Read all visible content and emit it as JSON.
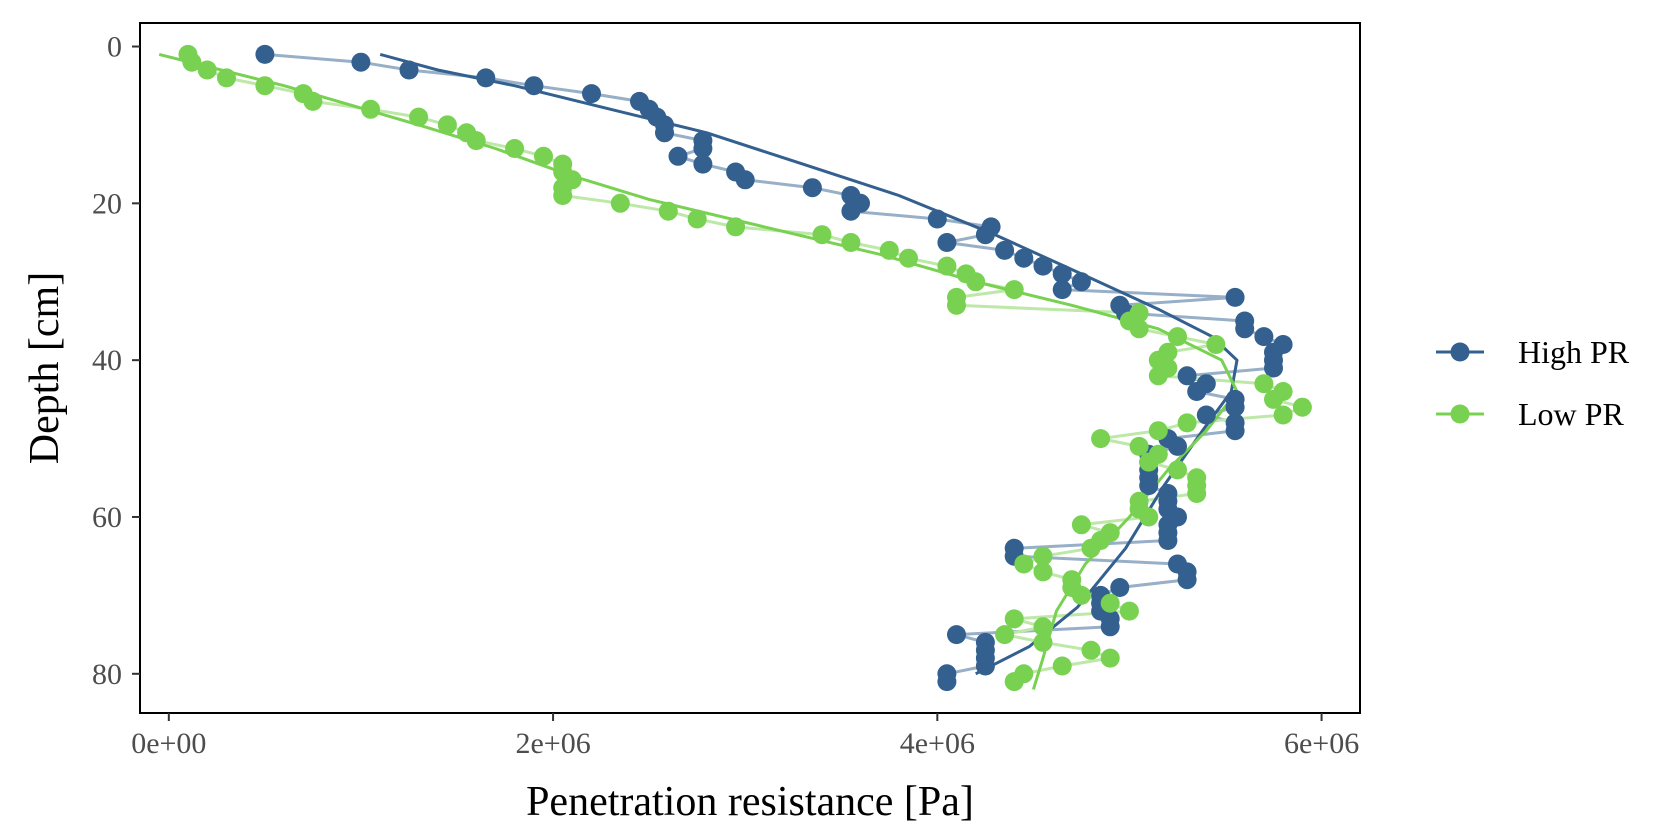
{
  "chart_data": {
    "type": "line",
    "title": "",
    "xlabel": "Penetration resistance [Pa]",
    "ylabel": "Depth [cm]",
    "xlim": [
      -150000,
      6200000
    ],
    "ylim": [
      85,
      -3
    ],
    "y_reversed": true,
    "x_ticks": [
      0,
      2000000,
      4000000,
      6000000
    ],
    "x_tick_labels": [
      "0e+00",
      "2e+06",
      "4e+06",
      "6e+06"
    ],
    "y_ticks": [
      0,
      20,
      40,
      60,
      80
    ],
    "y_tick_labels": [
      "0",
      "20",
      "40",
      "60",
      "80"
    ],
    "grid": false,
    "legend": "right",
    "series": [
      {
        "name": "High PR",
        "color": "#33608f",
        "line_color": "#98afc8",
        "points": [
          [
            500000,
            1
          ],
          [
            1000000,
            2
          ],
          [
            1250000,
            3
          ],
          [
            1650000,
            4
          ],
          [
            1900000,
            5
          ],
          [
            2200000,
            6
          ],
          [
            2450000,
            7
          ],
          [
            2500000,
            8
          ],
          [
            2540000,
            9
          ],
          [
            2580000,
            10
          ],
          [
            2580000,
            11
          ],
          [
            2780000,
            12
          ],
          [
            2780000,
            13
          ],
          [
            2650000,
            14
          ],
          [
            2780000,
            15
          ],
          [
            2950000,
            16
          ],
          [
            3000000,
            17
          ],
          [
            3350000,
            18
          ],
          [
            3550000,
            19
          ],
          [
            3600000,
            20
          ],
          [
            3550000,
            21
          ],
          [
            4000000,
            22
          ],
          [
            4280000,
            23
          ],
          [
            4250000,
            24
          ],
          [
            4050000,
            25
          ],
          [
            4350000,
            26
          ],
          [
            4450000,
            27
          ],
          [
            4550000,
            28
          ],
          [
            4650000,
            29
          ],
          [
            4750000,
            30
          ],
          [
            4650000,
            31
          ],
          [
            5550000,
            32
          ],
          [
            4950000,
            33
          ],
          [
            4980000,
            34
          ],
          [
            5600000,
            35
          ],
          [
            5600000,
            36
          ],
          [
            5700000,
            37
          ],
          [
            5800000,
            38
          ],
          [
            5750000,
            39
          ],
          [
            5750000,
            40
          ],
          [
            5750000,
            41
          ],
          [
            5300000,
            42
          ],
          [
            5400000,
            43
          ],
          [
            5350000,
            44
          ],
          [
            5550000,
            45
          ],
          [
            5550000,
            46
          ],
          [
            5400000,
            47
          ],
          [
            5550000,
            48
          ],
          [
            5550000,
            49
          ],
          [
            5200000,
            50
          ],
          [
            5250000,
            51
          ],
          [
            5100000,
            52
          ],
          [
            5100000,
            53
          ],
          [
            5100000,
            54
          ],
          [
            5100000,
            55
          ],
          [
            5100000,
            56
          ],
          [
            5200000,
            57
          ],
          [
            5200000,
            58
          ],
          [
            5200000,
            59
          ],
          [
            5250000,
            60
          ],
          [
            5200000,
            61
          ],
          [
            5200000,
            62
          ],
          [
            5200000,
            63
          ],
          [
            4400000,
            64
          ],
          [
            4400000,
            65
          ],
          [
            5250000,
            66
          ],
          [
            5300000,
            67
          ],
          [
            5300000,
            68
          ],
          [
            4950000,
            69
          ],
          [
            4850000,
            70
          ],
          [
            4850000,
            71
          ],
          [
            4850000,
            72
          ],
          [
            4900000,
            73
          ],
          [
            4900000,
            74
          ],
          [
            4100000,
            75
          ],
          [
            4250000,
            76
          ],
          [
            4250000,
            77
          ],
          [
            4250000,
            78
          ],
          [
            4250000,
            79
          ],
          [
            4050000,
            80
          ],
          [
            4050000,
            81
          ]
        ],
        "trend": [
          [
            1100000,
            1
          ],
          [
            1400000,
            3
          ],
          [
            1800000,
            5
          ],
          [
            2300000,
            8
          ],
          [
            2800000,
            11
          ],
          [
            3300000,
            15
          ],
          [
            3800000,
            19
          ],
          [
            4300000,
            24
          ],
          [
            4750000,
            29
          ],
          [
            5150000,
            33.5
          ],
          [
            5430000,
            37
          ],
          [
            5560000,
            40
          ],
          [
            5530000,
            44
          ],
          [
            5380000,
            49
          ],
          [
            5180000,
            56
          ],
          [
            4980000,
            64
          ],
          [
            4730000,
            71.5
          ],
          [
            4480000,
            76.5
          ],
          [
            4200000,
            80
          ]
        ]
      },
      {
        "name": "Low PR",
        "color": "#78d151",
        "line_color": "#bde8a8",
        "points": [
          [
            100000,
            1
          ],
          [
            120000,
            2
          ],
          [
            200000,
            3
          ],
          [
            300000,
            4
          ],
          [
            500000,
            5
          ],
          [
            700000,
            6
          ],
          [
            750000,
            7
          ],
          [
            1050000,
            8
          ],
          [
            1300000,
            9
          ],
          [
            1450000,
            10
          ],
          [
            1550000,
            11
          ],
          [
            1600000,
            12
          ],
          [
            1800000,
            13
          ],
          [
            1950000,
            14
          ],
          [
            2050000,
            15
          ],
          [
            2050000,
            16
          ],
          [
            2100000,
            17
          ],
          [
            2050000,
            18
          ],
          [
            2050000,
            19
          ],
          [
            2350000,
            20
          ],
          [
            2600000,
            21
          ],
          [
            2750000,
            22
          ],
          [
            2950000,
            23
          ],
          [
            3400000,
            24
          ],
          [
            3550000,
            25
          ],
          [
            3750000,
            26
          ],
          [
            3850000,
            27
          ],
          [
            4050000,
            28
          ],
          [
            4150000,
            29
          ],
          [
            4200000,
            30
          ],
          [
            4400000,
            31
          ],
          [
            4100000,
            32
          ],
          [
            4100000,
            33
          ],
          [
            5050000,
            34
          ],
          [
            5000000,
            35
          ],
          [
            5050000,
            36
          ],
          [
            5250000,
            37
          ],
          [
            5450000,
            38
          ],
          [
            5200000,
            39
          ],
          [
            5150000,
            40
          ],
          [
            5200000,
            41
          ],
          [
            5150000,
            42
          ],
          [
            5700000,
            43
          ],
          [
            5800000,
            44
          ],
          [
            5750000,
            45
          ],
          [
            5900000,
            46
          ],
          [
            5800000,
            47
          ],
          [
            5300000,
            48
          ],
          [
            5150000,
            49
          ],
          [
            4850000,
            50
          ],
          [
            5050000,
            51
          ],
          [
            5150000,
            52
          ],
          [
            5100000,
            53
          ],
          [
            5250000,
            54
          ],
          [
            5350000,
            55
          ],
          [
            5350000,
            56
          ],
          [
            5350000,
            57
          ],
          [
            5050000,
            58
          ],
          [
            5050000,
            59
          ],
          [
            5100000,
            60
          ],
          [
            4750000,
            61
          ],
          [
            4900000,
            62
          ],
          [
            4850000,
            63
          ],
          [
            4800000,
            64
          ],
          [
            4550000,
            65
          ],
          [
            4450000,
            66
          ],
          [
            4550000,
            67
          ],
          [
            4700000,
            68
          ],
          [
            4700000,
            69
          ],
          [
            4750000,
            70
          ],
          [
            4900000,
            71
          ],
          [
            5000000,
            72
          ],
          [
            4400000,
            73
          ],
          [
            4550000,
            74
          ],
          [
            4350000,
            75
          ],
          [
            4550000,
            76
          ],
          [
            4800000,
            77
          ],
          [
            4900000,
            78
          ],
          [
            4650000,
            79
          ],
          [
            4450000,
            80
          ],
          [
            4400000,
            81
          ]
        ],
        "trend": [
          [
            -50000,
            1
          ],
          [
            600000,
            5
          ],
          [
            1300000,
            10
          ],
          [
            1700000,
            13
          ],
          [
            2100000,
            16.5
          ],
          [
            2500000,
            19.5
          ],
          [
            3100000,
            23
          ],
          [
            3700000,
            26.5
          ],
          [
            4200000,
            30
          ],
          [
            4700000,
            33
          ],
          [
            5150000,
            36
          ],
          [
            5480000,
            40
          ],
          [
            5560000,
            44
          ],
          [
            5400000,
            49
          ],
          [
            5200000,
            54
          ],
          [
            5000000,
            60
          ],
          [
            4770000,
            66
          ],
          [
            4620000,
            72
          ],
          [
            4550000,
            78
          ],
          [
            4500000,
            82
          ]
        ]
      }
    ]
  }
}
